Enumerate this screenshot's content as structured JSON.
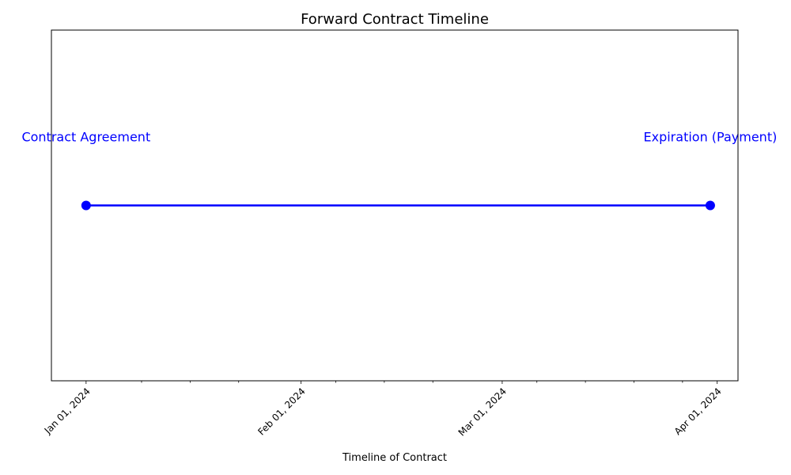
{
  "chart_data": {
    "type": "line",
    "title": "Forward Contract Timeline",
    "xlabel": "Timeline of Contract",
    "ylabel": "",
    "x_axis": "date",
    "xlim": [
      "2023-12-27",
      "2024-04-04"
    ],
    "ylim": [
      -0.5,
      0.5
    ],
    "y_ticks_visible": false,
    "grid": false,
    "legend": "none",
    "line_color": "#0000ff",
    "label_color": "#0000ff",
    "x_ticks": [
      {
        "date": "2024-01-01",
        "label": "Jan 01, 2024"
      },
      {
        "date": "2024-02-01",
        "label": "Feb 01, 2024"
      },
      {
        "date": "2024-03-01",
        "label": "Mar 01, 2024"
      },
      {
        "date": "2024-04-01",
        "label": "Apr 01, 2024"
      }
    ],
    "minor_ticks": [
      "2024-01-09",
      "2024-01-16",
      "2024-01-23",
      "2024-02-06",
      "2024-02-13",
      "2024-02-20",
      "2024-03-06",
      "2024-03-13",
      "2024-03-20",
      "2024-03-27"
    ],
    "series": [
      {
        "points": [
          {
            "date": "2024-01-01",
            "y": 0,
            "label": "Contract Agreement"
          },
          {
            "date": "2024-03-31",
            "y": 0,
            "label": "Expiration (Payment)"
          }
        ]
      }
    ]
  }
}
